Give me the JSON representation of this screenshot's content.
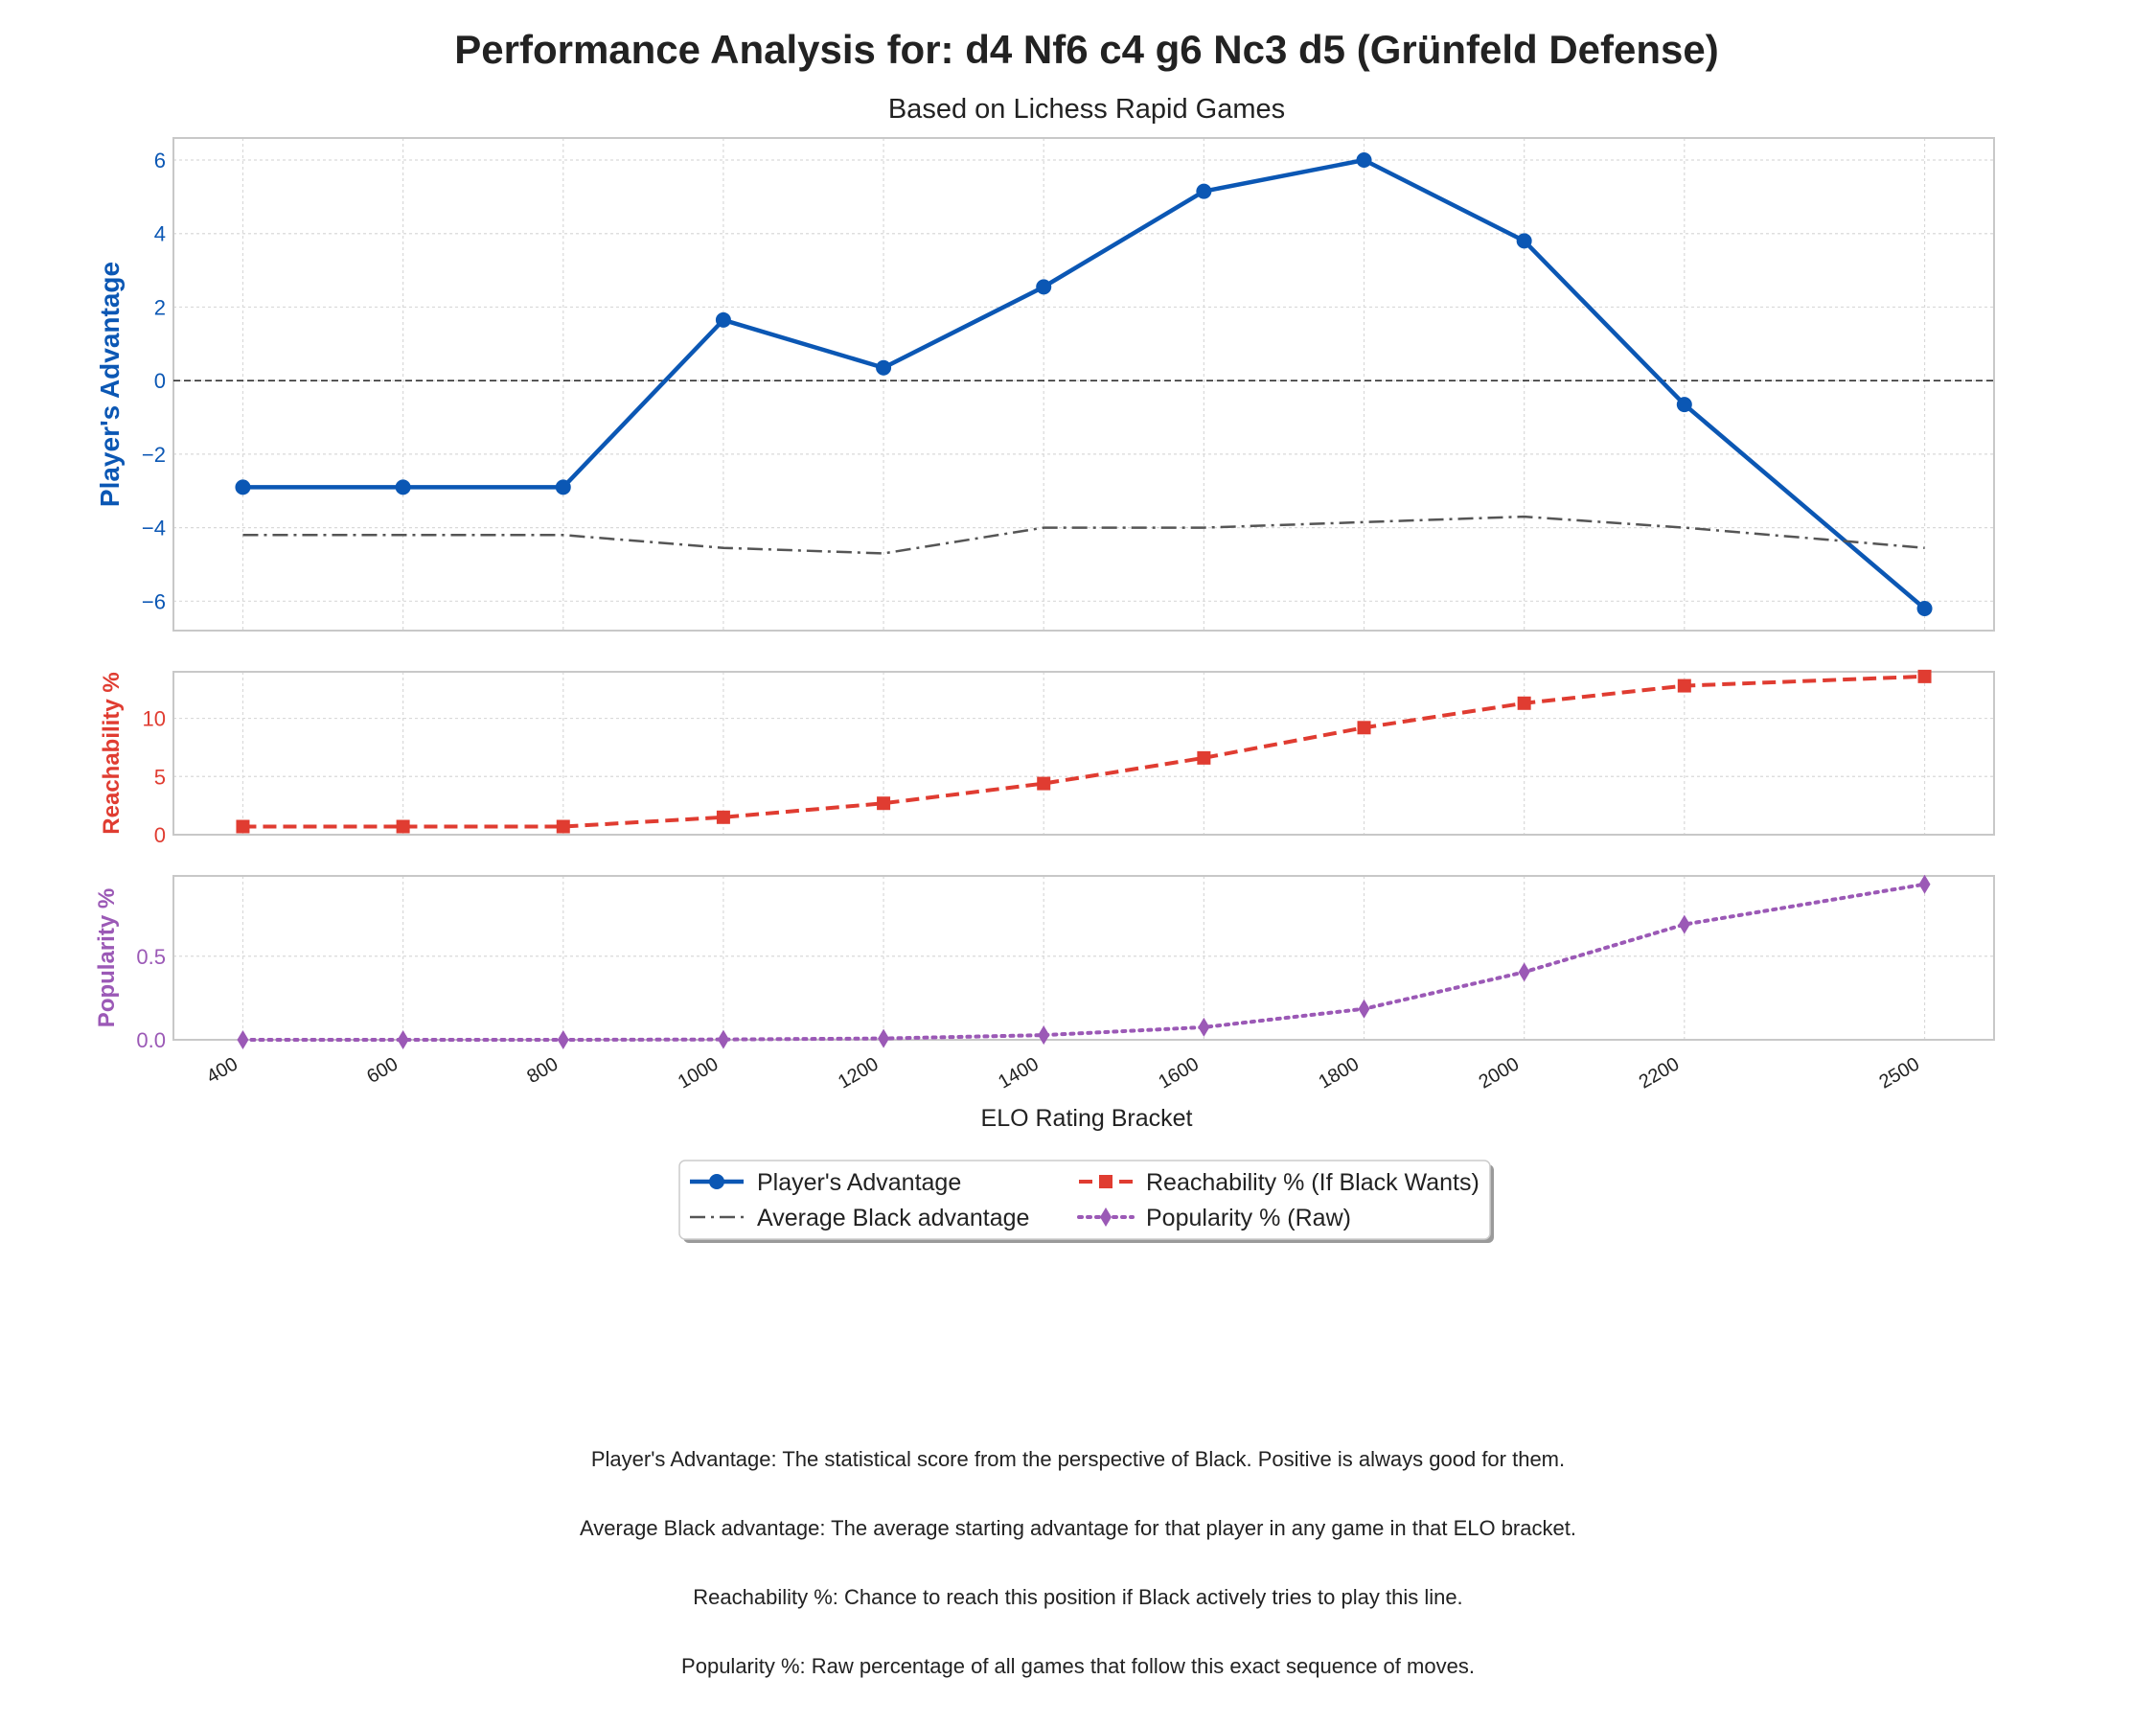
{
  "chart_data": {
    "type": "line",
    "title": "Performance Analysis for: d4 Nf6 c4 g6 Nc3 d5 (Grünfeld Defense)",
    "subtitle": "Based on Lichess Rapid Games",
    "xlabel": "ELO Rating Bracket",
    "x": [
      400,
      600,
      800,
      1000,
      1200,
      1400,
      1600,
      1800,
      2000,
      2200,
      2500
    ],
    "x_tick_labels": [
      "400",
      "600",
      "800",
      "1000",
      "1200",
      "1400",
      "1600",
      "1800",
      "2000",
      "2200",
      "2500"
    ],
    "grid": true,
    "legend_placement": "below plots, centered",
    "panels": [
      {
        "ylabel": "Player's Advantage",
        "ylim": [
          -6.8,
          6.6
        ],
        "yticks": [
          6,
          4,
          2,
          0,
          -2,
          -4,
          -6
        ],
        "ytick_labels": [
          "6",
          "4",
          "2",
          "0",
          "−2",
          "−4",
          "−6"
        ],
        "color": "#0b57b4",
        "reference_line": 0,
        "series": [
          {
            "name": "Player's Advantage",
            "color": "#0b57b4",
            "style": "solid",
            "marker": "circle",
            "values": [
              -2.9,
              -2.9,
              -2.9,
              1.65,
              0.35,
              2.55,
              5.15,
              6.0,
              3.8,
              -0.65,
              -6.2
            ]
          },
          {
            "name": "Average Black advantage",
            "color": "#555555",
            "style": "dashdot",
            "marker": "none",
            "values": [
              -4.2,
              -4.2,
              -4.2,
              -4.55,
              -4.7,
              -4.0,
              -4.0,
              -3.85,
              -3.7,
              -4.0,
              -4.55
            ]
          }
        ]
      },
      {
        "ylabel": "Reachability %",
        "ylim": [
          0,
          14
        ],
        "yticks": [
          10,
          5,
          0
        ],
        "ytick_labels": [
          "10",
          "5",
          "0"
        ],
        "color": "#e03c31",
        "series": [
          {
            "name": "Reachability % (If Black Wants)",
            "color": "#e03c31",
            "style": "dashed",
            "marker": "square",
            "values": [
              0.7,
              0.7,
              0.7,
              1.5,
              2.7,
              4.4,
              6.6,
              9.2,
              11.3,
              12.8,
              13.6
            ]
          }
        ]
      },
      {
        "ylabel": "Popularity %",
        "ylim": [
          0,
          0.98
        ],
        "yticks": [
          0.5,
          0.0
        ],
        "ytick_labels": [
          "0.5",
          "0.0"
        ],
        "color": "#9b59b6",
        "series": [
          {
            "name": "Popularity % (Raw)",
            "color": "#9b59b6",
            "style": "dotted",
            "marker": "diamond",
            "values": [
              0.0,
              0.0,
              0.0,
              0.002,
              0.008,
              0.028,
              0.075,
              0.185,
              0.405,
              0.69,
              0.93
            ]
          }
        ]
      }
    ]
  },
  "notes": [
    "Player's Advantage: The statistical score from the perspective of Black. Positive is always good for them.",
    "Average Black advantage: The average starting advantage for that player in any game in that ELO bracket.",
    "Reachability %: Chance to reach this position if Black actively tries to play this line.",
    "Popularity %: Raw percentage of all games that follow this exact sequence of moves."
  ]
}
